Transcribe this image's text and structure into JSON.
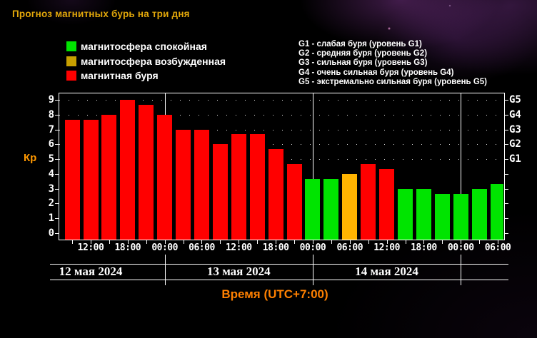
{
  "title": "Прогноз магнитных бурь на три дня",
  "legend": [
    {
      "label": "магнитосфера спокойная",
      "state": "quiet"
    },
    {
      "label": "магнитосфера возбужденная",
      "state": "excited"
    },
    {
      "label": "магнитная буря",
      "state": "storm"
    }
  ],
  "g_levels": [
    "G1 - слабая буря (уровень G1)",
    "G2 - средняя буря (уровень G2)",
    "G3 - сильная буря (уровень G3)",
    "G4 - очень сильная буря (уровень G4)",
    "G5 - экстремально сильная буря (уровень G5)"
  ],
  "colors": {
    "quiet": "#00e400",
    "excited": "#ffb400",
    "excited_legend": "#c8a000",
    "storm": "#ff0000",
    "title": "#e2a70a",
    "ylabel": "#ff9800",
    "xlabel": "#ff8000",
    "frame": "#ffffff"
  },
  "chart_data": {
    "type": "bar",
    "title": "Прогноз магнитных бурь на три дня",
    "ylabel": "Кр",
    "xlabel": "Время (UTC+7:00)",
    "ylim": [
      0,
      9
    ],
    "yticks": [
      0,
      1,
      2,
      3,
      4,
      5,
      6,
      7,
      8,
      9
    ],
    "grid": "dotted horizontal lines at Kp 5-9 (G1-G5 levels)",
    "right_axis": {
      "labels": [
        "G1",
        "G2",
        "G3",
        "G4",
        "G5"
      ],
      "kp_values": [
        5,
        6,
        7,
        8,
        9
      ]
    },
    "x_ticks": [
      {
        "hour": 12,
        "label": "12:00"
      },
      {
        "hour": 18,
        "label": "18:00"
      },
      {
        "hour": 24,
        "label": "00:00"
      },
      {
        "hour": 30,
        "label": "06:00"
      },
      {
        "hour": 36,
        "label": "12:00"
      },
      {
        "hour": 42,
        "label": "18:00"
      },
      {
        "hour": 48,
        "label": "00:00"
      },
      {
        "hour": 54,
        "label": "06:00"
      },
      {
        "hour": 60,
        "label": "12:00"
      },
      {
        "hour": 66,
        "label": "18:00"
      },
      {
        "hour": 72,
        "label": "00:00"
      },
      {
        "hour": 78,
        "label": "06:00"
      }
    ],
    "minor_tick_step_hours": 3,
    "day_separators_hours": [
      24,
      48,
      72
    ],
    "dates": [
      {
        "label": "12 мая 2024",
        "center_hour": 12
      },
      {
        "label": "13 мая 2024",
        "center_hour": 36
      },
      {
        "label": "14 мая 2024",
        "center_hour": 60
      }
    ],
    "bars": [
      {
        "hour": 9,
        "kp": 7.67,
        "state": "storm"
      },
      {
        "hour": 12,
        "kp": 7.67,
        "state": "storm"
      },
      {
        "hour": 15,
        "kp": 8.0,
        "state": "storm"
      },
      {
        "hour": 18,
        "kp": 9.0,
        "state": "storm"
      },
      {
        "hour": 21,
        "kp": 8.67,
        "state": "storm"
      },
      {
        "hour": 24,
        "kp": 8.0,
        "state": "storm"
      },
      {
        "hour": 27,
        "kp": 7.0,
        "state": "storm"
      },
      {
        "hour": 30,
        "kp": 7.0,
        "state": "storm"
      },
      {
        "hour": 33,
        "kp": 6.0,
        "state": "storm"
      },
      {
        "hour": 36,
        "kp": 6.67,
        "state": "storm"
      },
      {
        "hour": 39,
        "kp": 6.67,
        "state": "storm"
      },
      {
        "hour": 42,
        "kp": 5.67,
        "state": "storm"
      },
      {
        "hour": 45,
        "kp": 4.67,
        "state": "storm"
      },
      {
        "hour": 48,
        "kp": 3.67,
        "state": "quiet"
      },
      {
        "hour": 51,
        "kp": 3.67,
        "state": "quiet"
      },
      {
        "hour": 54,
        "kp": 4.0,
        "state": "excited"
      },
      {
        "hour": 57,
        "kp": 4.67,
        "state": "storm"
      },
      {
        "hour": 60,
        "kp": 4.33,
        "state": "storm"
      },
      {
        "hour": 63,
        "kp": 3.0,
        "state": "quiet"
      },
      {
        "hour": 66,
        "kp": 3.0,
        "state": "quiet"
      },
      {
        "hour": 69,
        "kp": 2.67,
        "state": "quiet"
      },
      {
        "hour": 72,
        "kp": 2.67,
        "state": "quiet"
      },
      {
        "hour": 75,
        "kp": 3.0,
        "state": "quiet"
      },
      {
        "hour": 78,
        "kp": 3.33,
        "state": "quiet"
      }
    ]
  }
}
